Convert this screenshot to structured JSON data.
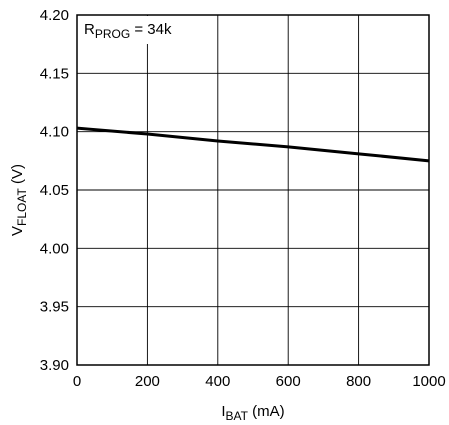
{
  "chart_data": {
    "type": "line",
    "xlabel": {
      "main": "I",
      "sub": "BAT",
      "unit": " (mA)"
    },
    "ylabel": {
      "main": "V",
      "sub": "FLOAT",
      "unit": " (V)"
    },
    "xlim": [
      0,
      1000
    ],
    "ylim": [
      3.9,
      4.2
    ],
    "xticks": [
      "0",
      "200",
      "400",
      "600",
      "800",
      "1000"
    ],
    "yticks": [
      "3.90",
      "3.95",
      "4.00",
      "4.05",
      "4.10",
      "4.15",
      "4.20"
    ],
    "grid": true,
    "annotation": {
      "main": "R",
      "sub": "PROG",
      "rest": " = 34k"
    },
    "series": [
      {
        "x": [
          0,
          200,
          400,
          600,
          800,
          1000
        ],
        "y": [
          4.103,
          4.098,
          4.092,
          4.087,
          4.081,
          4.075
        ]
      }
    ]
  }
}
